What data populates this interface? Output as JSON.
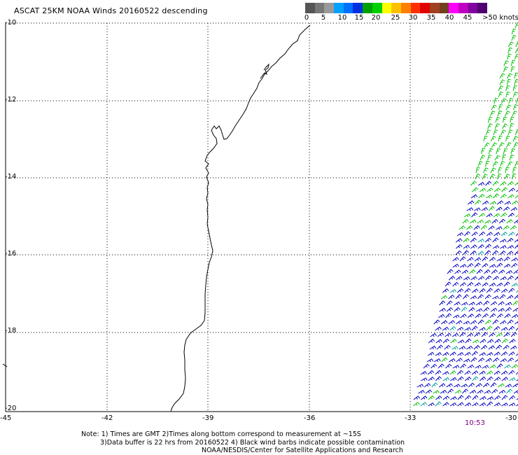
{
  "title": "ASCAT 25KM NOAA Winds 20160522 descending",
  "colorbar": {
    "colors": [
      "#555555",
      "#777777",
      "#999999",
      "#00a0ff",
      "#0070ff",
      "#0030e0",
      "#00a000",
      "#00d000",
      "#ffff00",
      "#ffc000",
      "#ff8000",
      "#ff3000",
      "#e00000",
      "#a04020",
      "#704020",
      "#ff00ff",
      "#c000c0",
      "#8000a0",
      "#500070"
    ],
    "labels": [
      "0",
      "5",
      "10",
      "15",
      "20",
      "25",
      "30",
      "35",
      "40",
      "45",
      ">50 knots"
    ]
  },
  "axes": {
    "lon_ticks": [
      "-45",
      "-42",
      "-39",
      "-36",
      "-33",
      "-30"
    ],
    "lat_ticks": [
      "-10",
      "-12",
      "-14",
      "-16",
      "-18",
      "-20"
    ]
  },
  "map": {
    "lon_range": [
      -45,
      -30
    ],
    "lat_range": [
      -20,
      -10
    ],
    "barb_colors": {
      "green": "#00c000",
      "blue": "#0000c0",
      "teal": "#00a0a0"
    }
  },
  "timestamp": "10:53",
  "notes": [
    "Note: 1) Times are GMT 2)Times along bottom correspond to measurement at ~15S",
    "3)Data buffer is 22 hrs from 20160522 4) Black wind barbs indicate possible contamination",
    "NOAA/NESDIS/Center for Satellite Applications and Research"
  ]
}
